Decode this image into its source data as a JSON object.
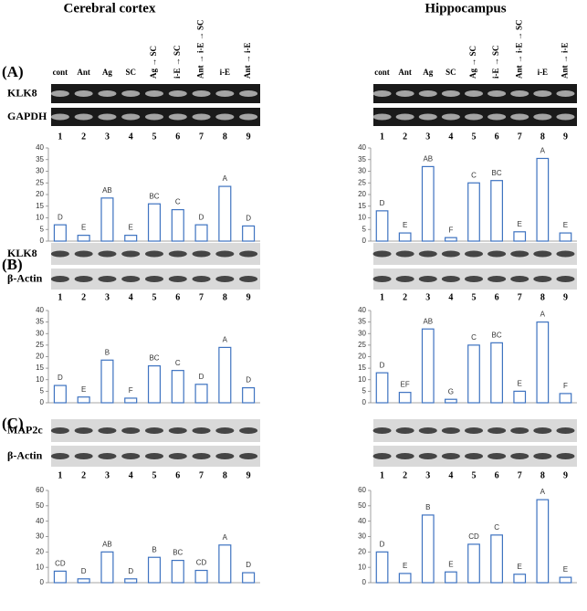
{
  "titles": [
    "Cerebral cortex",
    "Hippocampus"
  ],
  "lanes": [
    "cont",
    "Ant",
    "Ag",
    "SC",
    "Ag → SC",
    "i-E → SC",
    "Ant → i-E → SC",
    "i-E",
    "Ant → i-E"
  ],
  "lane_numbers": [
    1,
    2,
    3,
    4,
    5,
    6,
    7,
    8,
    9
  ],
  "panels": [
    {
      "label": "(A)",
      "rows": [
        "KLK8",
        "GAPDH"
      ]
    },
    {
      "label": "(B)",
      "rows": [
        "KLK8",
        "β-Actin"
      ]
    },
    {
      "label": "(C)",
      "rows": [
        "MAP2c",
        "β-Actin"
      ]
    }
  ],
  "chart_data": [
    {
      "type": "bar",
      "color": "#3d72c0",
      "values": [
        7,
        2.5,
        18.5,
        2.5,
        16,
        13.5,
        7,
        23.5,
        6.5
      ],
      "annotations": [
        "D",
        "E",
        "AB",
        "E",
        "BC",
        "C",
        "D",
        "A",
        "D"
      ],
      "ylim": [
        0,
        40
      ],
      "yticks": [
        0,
        5,
        10,
        15,
        20,
        25,
        30,
        35,
        40
      ]
    },
    {
      "type": "bar",
      "color": "#3d72c0",
      "values": [
        13,
        3.5,
        32,
        1.5,
        25,
        26,
        4,
        35.5,
        3.5
      ],
      "annotations": [
        "D",
        "E",
        "AB",
        "F",
        "C",
        "BC",
        "E",
        "A",
        "E"
      ],
      "ylim": [
        0,
        40
      ],
      "yticks": [
        0,
        5,
        10,
        15,
        20,
        25,
        30,
        35,
        40
      ]
    },
    {
      "type": "bar",
      "color": "#3d72c0",
      "values": [
        7.5,
        2.5,
        18.5,
        2,
        16,
        14,
        8,
        24,
        6.5
      ],
      "annotations": [
        "D",
        "E",
        "B",
        "F",
        "BC",
        "C",
        "D",
        "A",
        "D"
      ],
      "ylim": [
        0,
        40
      ],
      "yticks": [
        0,
        5,
        10,
        15,
        20,
        25,
        30,
        35,
        40
      ]
    },
    {
      "type": "bar",
      "color": "#3d72c0",
      "values": [
        13,
        4.5,
        32,
        1.5,
        25,
        26,
        5,
        35,
        4
      ],
      "annotations": [
        "D",
        "EF",
        "AB",
        "G",
        "C",
        "BC",
        "E",
        "A",
        "F"
      ],
      "ylim": [
        0,
        40
      ],
      "yticks": [
        0,
        5,
        10,
        15,
        20,
        25,
        30,
        35,
        40
      ]
    },
    {
      "type": "bar",
      "color": "#3d72c0",
      "values": [
        7.5,
        2.5,
        20,
        2.5,
        16.5,
        14.5,
        8,
        24.5,
        6.5
      ],
      "annotations": [
        "CD",
        "D",
        "AB",
        "D",
        "B",
        "BC",
        "CD",
        "A",
        "D"
      ],
      "ylim": [
        0,
        60
      ],
      "yticks": [
        0,
        10,
        20,
        30,
        40,
        50,
        60
      ]
    },
    {
      "type": "bar",
      "color": "#3d72c0",
      "values": [
        20,
        6,
        44,
        7,
        25,
        31,
        5.5,
        54,
        3.5
      ],
      "annotations": [
        "D",
        "E",
        "B",
        "E",
        "CD",
        "C",
        "E",
        "A",
        "E"
      ],
      "ylim": [
        0,
        60
      ],
      "yticks": [
        0,
        10,
        20,
        30,
        40,
        50,
        60
      ]
    }
  ]
}
